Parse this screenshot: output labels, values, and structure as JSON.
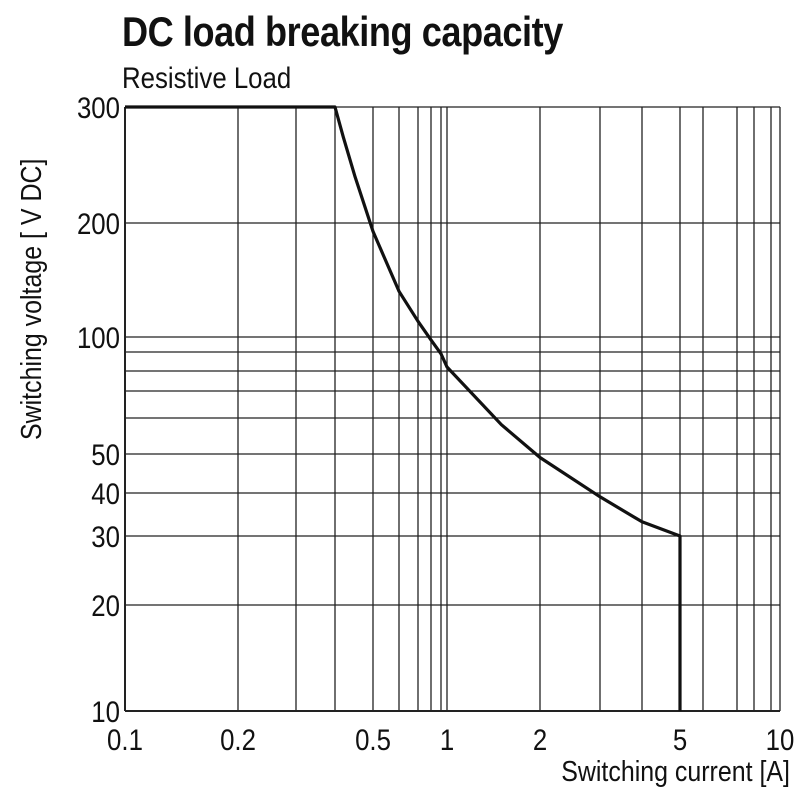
{
  "chart_data": {
    "type": "line",
    "title": "DC load breaking capacity",
    "subtitle": "Resistive Load",
    "xlabel": "Switching current [A]",
    "ylabel": "Switching voltage [ V DC]",
    "xscale": "log",
    "yscale": "log",
    "xlim": [
      0.1,
      10
    ],
    "ylim": [
      10,
      300
    ],
    "grid": true,
    "x_gridlines": [
      0.1,
      0.2,
      0.3,
      0.4,
      0.5,
      0.6,
      0.7,
      0.8,
      0.9,
      1,
      2,
      3,
      4,
      5,
      6,
      7,
      8,
      9,
      10
    ],
    "y_gridlines": [
      10,
      20,
      30,
      40,
      50,
      60,
      70,
      80,
      90,
      100,
      200,
      300
    ],
    "x_ticks": [
      {
        "value": 0.1,
        "label": "0.1"
      },
      {
        "value": 0.2,
        "label": "0.2"
      },
      {
        "value": 0.5,
        "label": "0.5"
      },
      {
        "value": 1,
        "label": "1"
      },
      {
        "value": 2,
        "label": "2"
      },
      {
        "value": 5,
        "label": "5"
      },
      {
        "value": 10,
        "label": "10"
      }
    ],
    "y_ticks": [
      {
        "value": 300,
        "label": "300"
      },
      {
        "value": 200,
        "label": "200"
      },
      {
        "value": 100,
        "label": "100"
      },
      {
        "value": 50,
        "label": "50"
      },
      {
        "value": 40,
        "label": "40"
      },
      {
        "value": 30,
        "label": "30"
      },
      {
        "value": 20,
        "label": "20"
      },
      {
        "value": 10,
        "label": "10"
      }
    ],
    "series": [
      {
        "color": "#111111",
        "points": [
          [
            0.1,
            300
          ],
          [
            0.4,
            300
          ],
          [
            0.42,
            270
          ],
          [
            0.45,
            235
          ],
          [
            0.5,
            190
          ],
          [
            0.6,
            132
          ],
          [
            0.7,
            110
          ],
          [
            0.8,
            98
          ],
          [
            0.9,
            89
          ],
          [
            1,
            82
          ],
          [
            1.5,
            58
          ],
          [
            2,
            49
          ],
          [
            3,
            39
          ],
          [
            4,
            33
          ],
          [
            5,
            30
          ],
          [
            5,
            10
          ]
        ]
      }
    ]
  }
}
